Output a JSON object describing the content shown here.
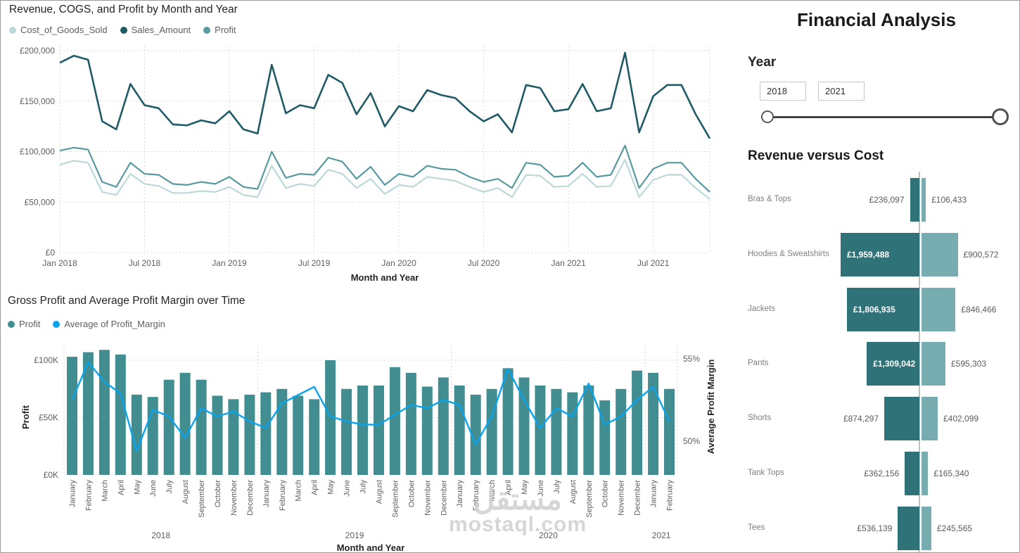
{
  "app": {
    "watermark_arabic": "مستقل",
    "watermark_latin": "mostaql.com"
  },
  "right_panel": {
    "title": "Financial Analysis",
    "year_slicer": {
      "label": "Year",
      "start_value": "2018",
      "end_value": "2021"
    }
  },
  "chart_data": [
    {
      "type": "line",
      "title": "Revenue, COGS, and Profit by Month and Year",
      "xlabel": "Month and Year",
      "ylim": [
        0,
        200000
      ],
      "grid": "dotted",
      "legend_position": "top-left",
      "y_tick_values": [
        200000,
        150000,
        100000,
        50000,
        0
      ],
      "y_tick_labels": [
        "£200,000",
        "£150,000",
        "£100,000",
        "£50,000",
        "£0"
      ],
      "x_tick_indices": [
        0,
        6,
        12,
        18,
        24,
        30,
        36,
        42
      ],
      "x_tick_labels": [
        "Jan 2018",
        "Jul 2018",
        "Jan 2019",
        "Jul 2019",
        "Jan 2020",
        "Jul 2020",
        "Jan 2021",
        "Jul 2021"
      ],
      "series": [
        {
          "name": "Cost_of_Goods_Sold",
          "color": "#bcd8da",
          "values": [
            87000,
            91000,
            89000,
            60000,
            57000,
            78000,
            68000,
            66000,
            59000,
            59000,
            61000,
            60000,
            65000,
            57000,
            55000,
            86000,
            64000,
            68000,
            66000,
            82000,
            78000,
            64000,
            73000,
            58000,
            67000,
            65000,
            75000,
            73000,
            71000,
            65000,
            60000,
            64000,
            55000,
            77000,
            76000,
            65000,
            66000,
            78000,
            65000,
            66000,
            92000,
            55000,
            72000,
            77000,
            77000,
            64000,
            53000
          ]
        },
        {
          "name": "Sales_Amount",
          "color": "#1e5b64",
          "values": [
            188000,
            195000,
            191000,
            130000,
            122000,
            167000,
            146000,
            143000,
            127000,
            126000,
            131000,
            128000,
            140000,
            122000,
            118000,
            186000,
            138000,
            146000,
            143000,
            176000,
            168000,
            137000,
            158000,
            125000,
            145000,
            140000,
            161000,
            156000,
            153000,
            140000,
            130000,
            137000,
            119000,
            166000,
            163000,
            140000,
            142000,
            167000,
            140000,
            143000,
            198000,
            119000,
            155000,
            166000,
            166000,
            137000,
            113000
          ]
        },
        {
          "name": "Profit",
          "color": "#579aa0",
          "values": [
            101000,
            104000,
            102000,
            70000,
            65000,
            89000,
            78000,
            77000,
            68000,
            67000,
            70000,
            68000,
            75000,
            65000,
            63000,
            100000,
            74000,
            78000,
            77000,
            94000,
            90000,
            73000,
            85000,
            67000,
            78000,
            75000,
            86000,
            83000,
            82000,
            75000,
            70000,
            73000,
            64000,
            89000,
            87000,
            75000,
            76000,
            89000,
            75000,
            77000,
            106000,
            64000,
            83000,
            89000,
            89000,
            73000,
            60000
          ]
        }
      ]
    },
    {
      "type": "bar+line",
      "title": "Gross Profit and Average Profit Margin over Time",
      "xlabel": "Month and Year",
      "ylabel_left": "Profit",
      "ylabel_right": "Average Profit Margin",
      "y_left_ticks": [
        "£100K",
        "£50K",
        "£0K"
      ],
      "y_left_tick_values": [
        100000,
        50000,
        0
      ],
      "y_right_ticks": [
        "55%",
        "50%"
      ],
      "y_right_tick_values": [
        55,
        50
      ],
      "months": [
        "January",
        "February",
        "March",
        "April",
        "May",
        "June",
        "July",
        "August",
        "September",
        "October",
        "November",
        "December",
        "January",
        "February",
        "March",
        "April",
        "May",
        "June",
        "July",
        "August",
        "September",
        "October",
        "November",
        "December",
        "January",
        "February",
        "March",
        "April",
        "May",
        "June",
        "July",
        "August",
        "September",
        "October",
        "November",
        "December",
        "January",
        "February"
      ],
      "year_groups": [
        {
          "label": "2018",
          "count": 12
        },
        {
          "label": "2019",
          "count": 12
        },
        {
          "label": "2020",
          "count": 12
        },
        {
          "label": "2021",
          "count": 2
        }
      ],
      "bar_series": {
        "name": "Profit",
        "color": "#418d90",
        "values_k": [
          103,
          107,
          109,
          105,
          70,
          68,
          83,
          89,
          83,
          69,
          66,
          70,
          72,
          75,
          69,
          66,
          100,
          75,
          78,
          78,
          94,
          89,
          77,
          85,
          78,
          70,
          75,
          93,
          85,
          78,
          75,
          72,
          78,
          65,
          75,
          91,
          89,
          75
        ]
      },
      "line_series": {
        "name": "Average of Profit_Margin",
        "color": "#0aa3ee",
        "values_pct": [
          52.5,
          54.8,
          53.6,
          52.9,
          49.4,
          51.9,
          51.5,
          50.2,
          52.0,
          51.5,
          51.8,
          51.2,
          50.8,
          52.3,
          52.8,
          53.3,
          51.5,
          51.2,
          51.0,
          51.0,
          51.6,
          52.2,
          52.0,
          52.5,
          52.2,
          49.8,
          51.5,
          54.4,
          52.5,
          50.8,
          52.0,
          51.5,
          53.5,
          51.0,
          51.5,
          52.5,
          53.3,
          51.2
        ]
      }
    },
    {
      "type": "tornado",
      "title": "Revenue versus Cost",
      "left_series": "Revenue",
      "right_series": "Cost",
      "left_color": "#2f7277",
      "right_color": "#77acb0",
      "rows": [
        {
          "category": "Bras & Tops",
          "left_label": "£236,097",
          "left_value": 236097,
          "right_label": "£106,433",
          "right_value": 106433
        },
        {
          "category": "Hoodies & Sweatshirts",
          "left_label": "£1,959,488",
          "left_value": 1959488,
          "right_label": "£900,572",
          "right_value": 900572
        },
        {
          "category": "Jackets",
          "left_label": "£1,806,935",
          "left_value": 1806935,
          "right_label": "£846,466",
          "right_value": 846466
        },
        {
          "category": "Pants",
          "left_label": "£1,309,042",
          "left_value": 1309042,
          "right_label": "£595,303",
          "right_value": 595303
        },
        {
          "category": "Shorts",
          "left_label": "£874,297",
          "left_value": 874297,
          "right_label": "£402,099",
          "right_value": 402099
        },
        {
          "category": "Tank Tops",
          "left_label": "£362,156",
          "left_value": 362156,
          "right_label": "£165,340",
          "right_value": 165340
        },
        {
          "category": "Tees",
          "left_label": "£536,139",
          "left_value": 536139,
          "right_label": "£245,565",
          "right_value": 245565
        }
      ]
    }
  ]
}
